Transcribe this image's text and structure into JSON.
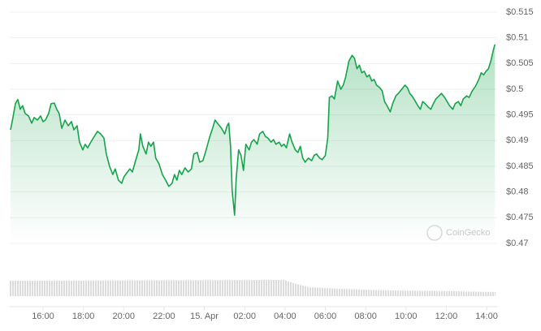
{
  "chart_data": {
    "type": "line",
    "watermark": "CoinGecko",
    "color": "#16a34a",
    "grid": true,
    "ylim": [
      0.47,
      0.515
    ],
    "yticks": [
      {
        "value": 0.47,
        "label": "$0.47"
      },
      {
        "value": 0.475,
        "label": "$0.475"
      },
      {
        "value": 0.48,
        "label": "$0.48"
      },
      {
        "value": 0.485,
        "label": "$0.485"
      },
      {
        "value": 0.49,
        "label": "$0.49"
      },
      {
        "value": 0.495,
        "label": "$0.495"
      },
      {
        "value": 0.5,
        "label": "$0.5"
      },
      {
        "value": 0.505,
        "label": "$0.505"
      },
      {
        "value": 0.51,
        "label": "$0.51"
      },
      {
        "value": 0.515,
        "label": "$0.515"
      }
    ],
    "xlim": [
      14.35,
      38.44
    ],
    "xticks": [
      {
        "value": 16,
        "label": "16:00"
      },
      {
        "value": 18,
        "label": "18:00"
      },
      {
        "value": 20,
        "label": "20:00"
      },
      {
        "value": 22,
        "label": "22:00"
      },
      {
        "value": 24,
        "label": "15. Apr"
      },
      {
        "value": 26,
        "label": "02:00"
      },
      {
        "value": 28,
        "label": "04:00"
      },
      {
        "value": 30,
        "label": "06:00"
      },
      {
        "value": 32,
        "label": "08:00"
      },
      {
        "value": 34,
        "label": "10:00"
      },
      {
        "value": 36,
        "label": "12:00"
      },
      {
        "value": 38,
        "label": "14:00"
      }
    ],
    "x": [
      14.39,
      14.51,
      14.63,
      14.75,
      14.87,
      14.99,
      15.11,
      15.28,
      15.44,
      15.56,
      15.72,
      15.88,
      16.0,
      16.12,
      16.28,
      16.4,
      16.56,
      16.68,
      16.8,
      16.93,
      17.09,
      17.25,
      17.41,
      17.53,
      17.69,
      17.81,
      17.97,
      18.09,
      18.21,
      18.37,
      18.54,
      18.7,
      18.86,
      19.02,
      19.14,
      19.3,
      19.46,
      19.58,
      19.74,
      19.9,
      20.02,
      20.19,
      20.31,
      20.43,
      20.59,
      20.75,
      20.83,
      20.95,
      21.11,
      21.23,
      21.35,
      21.48,
      21.59,
      21.75,
      21.92,
      22.08,
      22.24,
      22.4,
      22.52,
      22.64,
      22.76,
      22.88,
      23.04,
      23.2,
      23.36,
      23.48,
      23.65,
      23.77,
      23.93,
      24.09,
      24.25,
      24.41,
      24.53,
      24.69,
      24.85,
      25.01,
      25.13,
      25.21,
      25.3,
      25.38,
      25.5,
      25.58,
      25.7,
      25.82,
      25.94,
      26.06,
      26.22,
      26.34,
      26.46,
      26.62,
      26.74,
      26.9,
      27.03,
      27.15,
      27.31,
      27.43,
      27.55,
      27.71,
      27.83,
      27.95,
      28.07,
      28.23,
      28.35,
      28.51,
      28.64,
      28.76,
      28.88,
      29.0,
      29.16,
      29.32,
      29.44,
      29.56,
      29.72,
      29.84,
      30.0,
      30.12,
      30.2,
      30.33,
      30.45,
      30.61,
      30.77,
      30.89,
      31.01,
      31.17,
      31.33,
      31.45,
      31.57,
      31.69,
      31.81,
      31.93,
      32.06,
      32.18,
      32.3,
      32.42,
      32.54,
      32.7,
      32.82,
      32.94,
      33.06,
      33.22,
      33.34,
      33.5,
      33.67,
      33.79,
      33.95,
      34.07,
      34.19,
      34.35,
      34.47,
      34.59,
      34.71,
      34.83,
      34.95,
      35.11,
      35.23,
      35.36,
      35.48,
      35.64,
      35.76,
      35.92,
      36.04,
      36.16,
      36.32,
      36.44,
      36.6,
      36.72,
      36.84,
      37.01,
      37.13,
      37.29,
      37.45,
      37.61,
      37.73,
      37.85,
      37.97,
      38.09,
      38.21,
      38.33,
      38.41
    ],
    "values": [
      0.4921,
      0.4945,
      0.4972,
      0.498,
      0.4961,
      0.4968,
      0.4953,
      0.4948,
      0.4934,
      0.4945,
      0.494,
      0.4948,
      0.4937,
      0.494,
      0.4953,
      0.4972,
      0.4973,
      0.4961,
      0.4953,
      0.4924,
      0.494,
      0.4929,
      0.4937,
      0.4921,
      0.4929,
      0.4897,
      0.4882,
      0.4893,
      0.4886,
      0.4897,
      0.4908,
      0.4918,
      0.4913,
      0.4905,
      0.4874,
      0.485,
      0.4834,
      0.4845,
      0.4823,
      0.4817,
      0.483,
      0.4839,
      0.4845,
      0.4839,
      0.4861,
      0.4882,
      0.4913,
      0.4889,
      0.4874,
      0.4897,
      0.4889,
      0.4897,
      0.4866,
      0.4855,
      0.4834,
      0.4823,
      0.4811,
      0.4817,
      0.4834,
      0.4823,
      0.4842,
      0.4834,
      0.4847,
      0.4839,
      0.4845,
      0.4874,
      0.4877,
      0.4858,
      0.4861,
      0.4882,
      0.4905,
      0.4924,
      0.494,
      0.4932,
      0.4924,
      0.4913,
      0.4929,
      0.4934,
      0.4889,
      0.4803,
      0.4755,
      0.4826,
      0.4882,
      0.4871,
      0.4842,
      0.4893,
      0.4882,
      0.4897,
      0.4902,
      0.4893,
      0.4913,
      0.4918,
      0.4908,
      0.4905,
      0.4897,
      0.4902,
      0.4893,
      0.4897,
      0.4889,
      0.4893,
      0.4886,
      0.4913,
      0.4897,
      0.4882,
      0.4877,
      0.4889,
      0.4866,
      0.4858,
      0.4866,
      0.4861,
      0.4871,
      0.4874,
      0.4866,
      0.4863,
      0.4871,
      0.4905,
      0.4984,
      0.4987,
      0.4981,
      0.5016,
      0.5,
      0.5008,
      0.5024,
      0.5055,
      0.5066,
      0.506,
      0.504,
      0.5047,
      0.5032,
      0.5035,
      0.5024,
      0.5028,
      0.5016,
      0.5019,
      0.5008,
      0.5003,
      0.4997,
      0.4976,
      0.4968,
      0.4956,
      0.4972,
      0.4987,
      0.4994,
      0.5,
      0.5008,
      0.5003,
      0.4992,
      0.4984,
      0.4976,
      0.4968,
      0.4961,
      0.4976,
      0.4972,
      0.4965,
      0.4961,
      0.4972,
      0.4981,
      0.4987,
      0.4992,
      0.4984,
      0.4976,
      0.4968,
      0.4961,
      0.4972,
      0.4976,
      0.4968,
      0.4981,
      0.4987,
      0.4984,
      0.4997,
      0.5006,
      0.5019,
      0.5032,
      0.5028,
      0.5035,
      0.504,
      0.5055,
      0.5076,
      0.5087
    ]
  }
}
